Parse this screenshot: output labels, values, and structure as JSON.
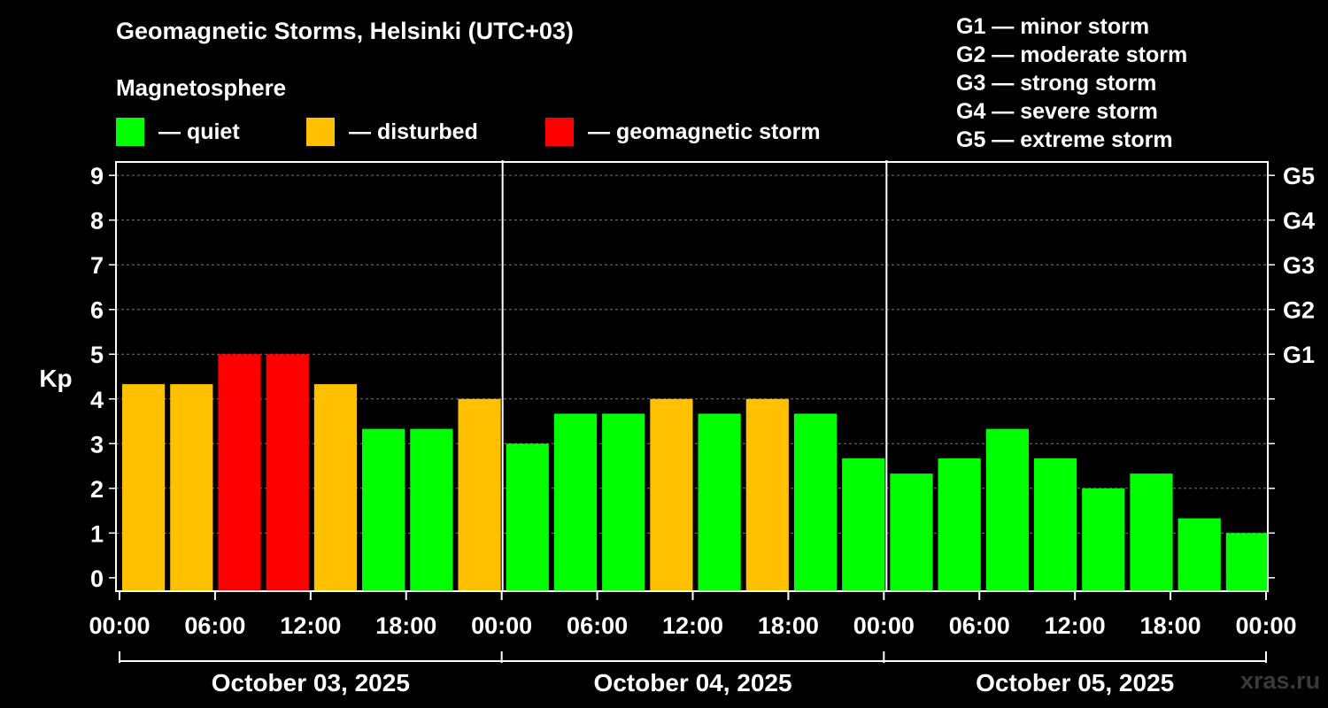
{
  "title": "Geomagnetic Storms, Helsinki (UTC+03)",
  "subtitle": "Magnetosphere",
  "legend": [
    {
      "label": "— quiet",
      "color": "#00ff00"
    },
    {
      "label": "— disturbed",
      "color": "#ffc000"
    },
    {
      "label": "— geomagnetic storm",
      "color": "#ff0000"
    }
  ],
  "g_scale_legend": [
    "G1 — minor storm",
    "G2 — moderate storm",
    "G3 — strong storm",
    "G4 — severe storm",
    "G5 — extreme storm"
  ],
  "watermark": "xras.ru",
  "chart_data": {
    "type": "bar",
    "title": "Geomagnetic Storms, Helsinki (UTC+03)",
    "ylabel": "Kp",
    "ylim": [
      -0.3,
      9.3
    ],
    "y_ticks": [
      "0",
      "1",
      "2",
      "3",
      "4",
      "5",
      "6",
      "7",
      "8",
      "9"
    ],
    "right_ticks": [
      {
        "label": "G1",
        "kp": 5
      },
      {
        "label": "G2",
        "kp": 6
      },
      {
        "label": "G3",
        "kp": 7
      },
      {
        "label": "G4",
        "kp": 8
      },
      {
        "label": "G5",
        "kp": 9
      }
    ],
    "x_tick_labels": [
      "00:00",
      "06:00",
      "12:00",
      "18:00",
      "00:00",
      "06:00",
      "12:00",
      "18:00",
      "00:00",
      "06:00",
      "12:00",
      "18:00",
      "00:00"
    ],
    "day_labels": [
      "October 03, 2025",
      "October 04, 2025",
      "October 05, 2025"
    ],
    "bar_interval_hours": 3,
    "values": [
      4.33,
      4.33,
      5,
      5,
      4.33,
      3.33,
      3.33,
      4,
      3,
      3.67,
      3.67,
      4,
      3.67,
      4,
      3.67,
      2.67,
      2.33,
      2.67,
      3.33,
      2.67,
      2,
      2.33,
      1.33,
      1
    ],
    "bar_colors": [
      "#ffc000",
      "#ffc000",
      "#ff0000",
      "#ff0000",
      "#ffc000",
      "#00ff00",
      "#00ff00",
      "#ffc000",
      "#00ff00",
      "#00ff00",
      "#00ff00",
      "#ffc000",
      "#00ff00",
      "#ffc000",
      "#00ff00",
      "#00ff00",
      "#00ff00",
      "#00ff00",
      "#00ff00",
      "#00ff00",
      "#00ff00",
      "#00ff00",
      "#00ff00",
      "#00ff00"
    ],
    "grid": true
  }
}
